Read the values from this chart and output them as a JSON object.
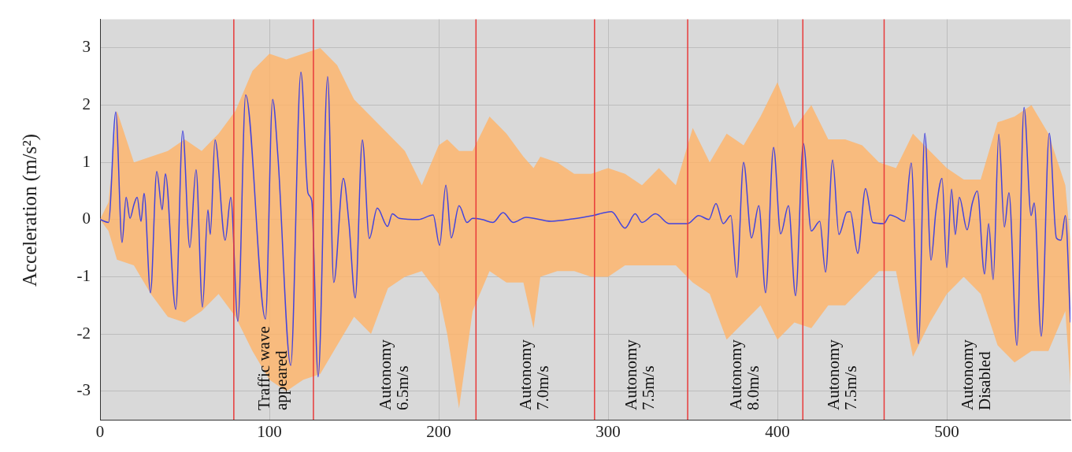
{
  "chart_data": {
    "type": "line",
    "ylabel": "Acceleration (m/s²)",
    "xlim": [
      0,
      573
    ],
    "xticks": [
      0,
      100,
      200,
      300,
      400,
      500
    ],
    "ylim": [
      -3.5,
      3.5
    ],
    "yticks": [
      -3,
      -2,
      -1,
      0,
      1,
      2,
      3
    ],
    "grid": true,
    "legend": false,
    "series": [
      {
        "color": "#ffb366",
        "values": [
          null,
          null,
          null,
          null,
          null,
          null,
          null,
          null,
          null,
          null,
          null,
          null,
          null,
          null,
          null,
          null,
          null,
          null,
          null,
          null,
          null,
          null,
          null,
          null,
          null,
          null,
          null,
          null,
          null,
          null,
          null,
          null,
          null,
          null,
          null,
          null,
          null,
          null,
          null,
          null,
          null,
          null,
          null,
          null,
          null,
          null,
          null,
          null,
          null,
          null,
          null,
          null,
          null,
          null,
          null,
          null,
          null,
          null,
          null,
          null,
          null,
          null
        ],
        "x": [
          0,
          5,
          10,
          20,
          30,
          40,
          50,
          60,
          70,
          80,
          90,
          100,
          110,
          120,
          130,
          140,
          150,
          160,
          170,
          180,
          190,
          200,
          205,
          212,
          220,
          230,
          240,
          250,
          256,
          260,
          270,
          280,
          290,
          300,
          310,
          320,
          330,
          340,
          350,
          360,
          370,
          380,
          390,
          400,
          410,
          420,
          430,
          440,
          450,
          460,
          470,
          480,
          490,
          500,
          510,
          520,
          530,
          540,
          550,
          560,
          570,
          573
        ],
        "lower": [
          0,
          -0.2,
          -0.7,
          -0.8,
          -1.3,
          -1.7,
          -1.8,
          -1.6,
          -1.3,
          -1.7,
          -2.3,
          -2.8,
          -3.0,
          -2.8,
          -2.7,
          -2.2,
          -1.7,
          -2.0,
          -1.2,
          -1.0,
          -0.9,
          -1.3,
          -2.0,
          -3.3,
          -1.6,
          -0.9,
          -1.1,
          -1.1,
          -1.9,
          -1.0,
          -0.9,
          -0.9,
          -1.0,
          -1.0,
          -0.8,
          -0.8,
          -0.8,
          -0.8,
          -1.1,
          -1.3,
          -2.1,
          -1.8,
          -1.5,
          -2.1,
          -1.8,
          -1.9,
          -1.5,
          -1.5,
          -1.2,
          -0.9,
          -0.9,
          -2.4,
          -1.8,
          -1.3,
          -1.0,
          -1.3,
          -2.2,
          -2.5,
          -2.3,
          -2.3,
          -1.6,
          -2.9
        ],
        "upper": [
          0,
          0.3,
          1.9,
          1.0,
          1.1,
          1.2,
          1.4,
          1.2,
          1.5,
          1.9,
          2.6,
          2.9,
          2.8,
          2.9,
          3.0,
          2.7,
          2.1,
          1.8,
          1.5,
          1.2,
          0.6,
          1.3,
          1.4,
          1.2,
          1.2,
          1.8,
          1.5,
          1.1,
          0.9,
          1.1,
          1.0,
          0.8,
          0.8,
          0.9,
          0.8,
          0.6,
          0.9,
          0.6,
          1.6,
          1.0,
          1.5,
          1.3,
          1.8,
          2.4,
          1.6,
          2.0,
          1.4,
          1.4,
          1.3,
          1.0,
          0.9,
          1.5,
          1.2,
          0.9,
          0.7,
          0.7,
          1.7,
          1.8,
          2.0,
          1.5,
          0.6,
          -0.4
        ]
      },
      {
        "color": "#4343dd",
        "x": [
          0,
          5,
          9.3,
          13,
          15.4,
          17.7,
          20,
          21.9,
          24.2,
          26,
          29.8,
          33.5,
          36.7,
          38.6,
          44.7,
          48.8,
          53,
          56.7,
          60.5,
          63.7,
          65.1,
          67.9,
          73.9,
          77.2,
          81.4,
          86,
          97.7,
          101.9,
          105,
          112.6,
          118.6,
          122.8,
          125,
          128.8,
          134.4,
          138,
          143.7,
          147,
          150.7,
          154.9,
          159,
          163.7,
          169.8,
          172.6,
          176.7,
          188,
          196.7,
          200.5,
          204.2,
          207.4,
          212,
          216.7,
          220,
          225.6,
          232,
          238,
          244,
          251.6,
          266.5,
          279,
          291,
          302,
          310,
          316,
          320,
          328,
          336,
          347,
          353.5,
          359.5,
          363.7,
          368,
          372.5,
          376,
          380,
          384.7,
          389,
          393,
          397.7,
          401.9,
          406.5,
          410.7,
          415.3,
          420,
          425,
          428.4,
          432.6,
          436.3,
          441,
          443,
          447.4,
          452,
          456.3,
          462.8,
          466.5,
          470.2,
          475,
          479,
          483.3,
          487,
          490.7,
          493.5,
          497.2,
          500,
          502.8,
          505,
          507.4,
          512,
          515,
          518,
          522.3,
          524.7,
          527.4,
          530.7,
          534,
          536.7,
          541.4,
          545.6,
          549.8,
          551.6,
          555.8,
          560.5,
          564.7,
          567.4,
          570,
          573
        ],
        "values": [
          0,
          -0.05,
          1.88,
          -0.4,
          0.39,
          0.02,
          0.26,
          0.39,
          -0.03,
          0.46,
          -1.28,
          0.84,
          0.17,
          0.8,
          -1.57,
          1.55,
          -0.49,
          0.87,
          -1.53,
          0.17,
          -0.26,
          1.39,
          -0.36,
          0.39,
          -1.78,
          2.18,
          -1.74,
          2.1,
          1.12,
          -2.55,
          2.58,
          0.46,
          0.33,
          -2.75,
          2.5,
          -1.1,
          0.72,
          -0.07,
          -1.37,
          1.39,
          -0.33,
          0.2,
          -0.12,
          0.1,
          0.02,
          0,
          0.08,
          -0.45,
          0.6,
          -0.32,
          0.24,
          -0.05,
          0.02,
          0,
          -0.05,
          0.12,
          -0.05,
          0.04,
          -0.03,
          0.01,
          0.07,
          0.14,
          -0.15,
          0.1,
          -0.05,
          0.1,
          -0.07,
          -0.07,
          0.07,
          0,
          0.28,
          -0.07,
          0.07,
          -1.01,
          1.0,
          -0.32,
          0.24,
          -1.28,
          1.26,
          -0.25,
          0.24,
          -1.33,
          1.33,
          -0.2,
          -0.03,
          -0.92,
          1.04,
          -0.26,
          0.13,
          0.14,
          -0.59,
          0.54,
          -0.05,
          -0.07,
          0.08,
          0.04,
          -0.03,
          0.99,
          -2.17,
          1.51,
          -0.71,
          0.13,
          0.72,
          -0.84,
          0.53,
          -0.26,
          0.39,
          -0.18,
          0.28,
          0.5,
          -0.95,
          -0.07,
          -1.05,
          1.49,
          -0.13,
          0.47,
          -2.2,
          1.96,
          0.07,
          0.29,
          -2.04,
          1.51,
          -0.32,
          -0.36,
          0.07,
          -1.8
        ]
      }
    ],
    "ref_lines": [
      {
        "axis": "x",
        "value": 79,
        "color": "#e83a3a"
      },
      {
        "axis": "x",
        "value": 126,
        "color": "#e83a3a"
      },
      {
        "axis": "x",
        "value": 222,
        "color": "#e83a3a"
      },
      {
        "axis": "x",
        "value": 292,
        "color": "#e83a3a"
      },
      {
        "axis": "x",
        "value": 347,
        "color": "#e83a3a"
      },
      {
        "axis": "x",
        "value": 415,
        "color": "#e83a3a"
      },
      {
        "axis": "x",
        "value": 463,
        "color": "#e83a3a"
      }
    ],
    "annotations": [
      "Traffic wave\nappeared",
      "Autonomy\n6.5m/s",
      "Autonomy\n7.0m/s",
      "Autonomy\n7.5m/s",
      "Autonomy\n8.0m/s",
      "Autonomy\n7.5m/s",
      "Autonomy\nDisabled"
    ]
  }
}
